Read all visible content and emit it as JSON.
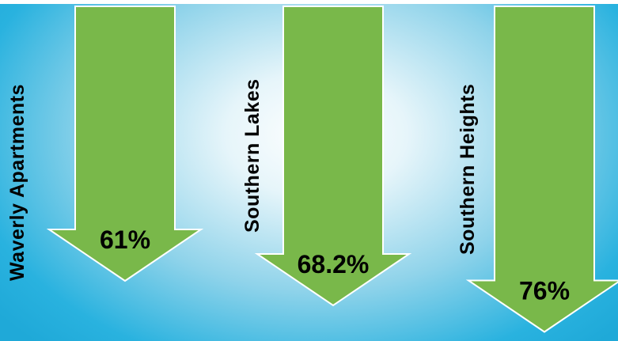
{
  "chart_data": {
    "type": "bar",
    "orientation": "downward-arrows",
    "categories": [
      "Waverly Apartments",
      "Southern Lakes",
      "Southern Heights"
    ],
    "values": [
      61,
      68.2,
      76
    ],
    "value_labels": [
      "61%",
      "68.2%",
      "76%"
    ],
    "unit": "%",
    "title": "",
    "xlabel": "",
    "ylabel": "",
    "ylim": [
      0,
      100
    ],
    "grid": false,
    "legend": "none"
  },
  "colors": {
    "arrow_fill": "#79b84a",
    "arrow_stroke": "#ffffff",
    "background_center": "#ffffff",
    "background_edge": "#1fa9d8",
    "text": "#000000"
  }
}
